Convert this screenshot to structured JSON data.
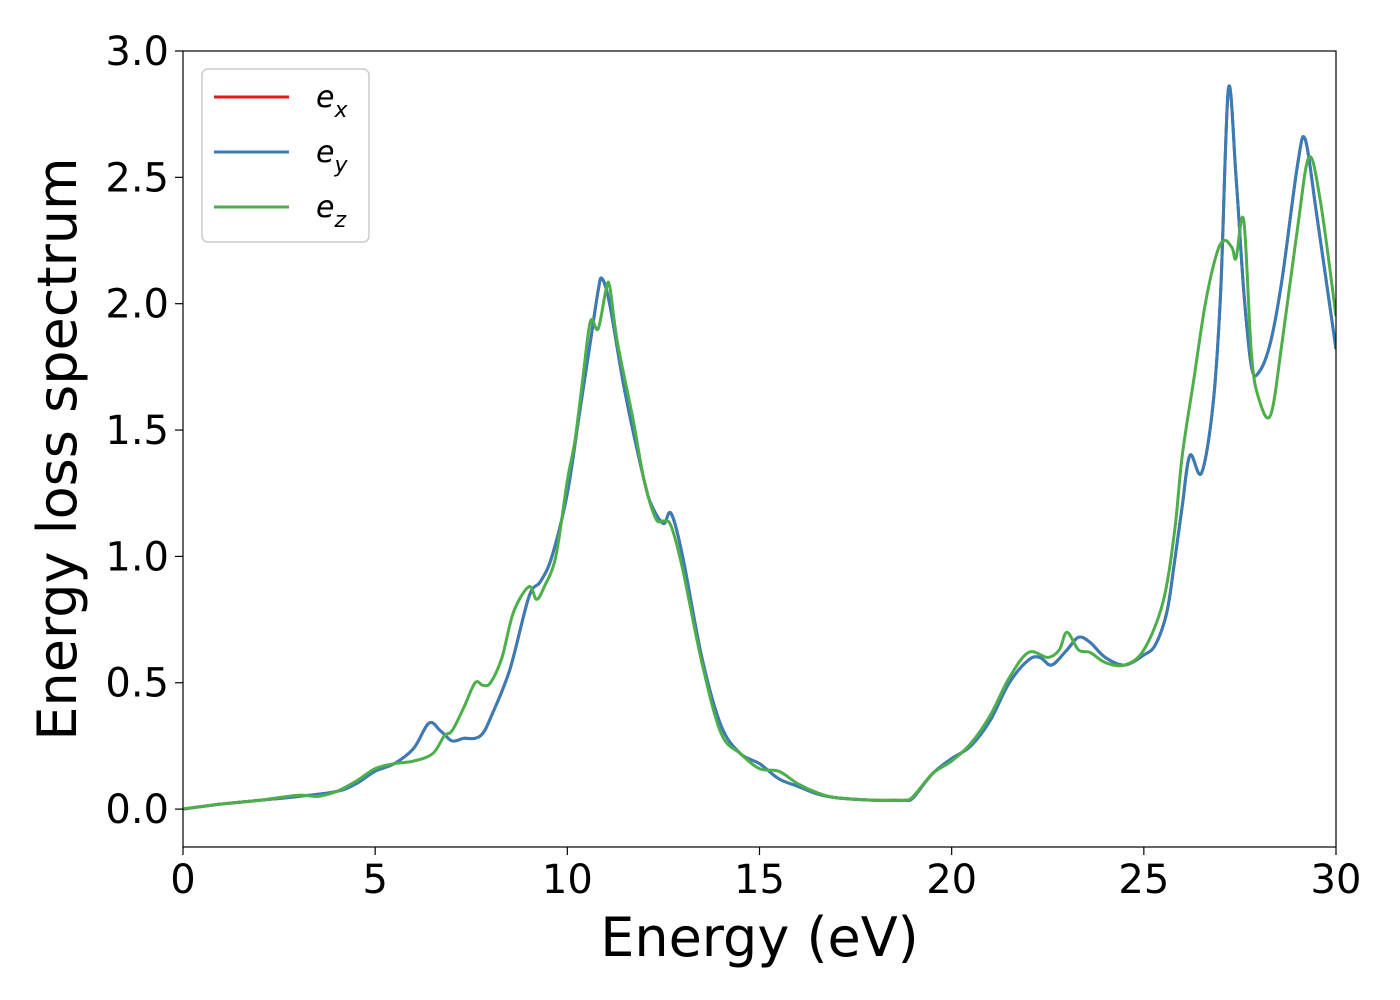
{
  "chart_data": {
    "type": "line",
    "xlabel": "Energy (eV)",
    "ylabel": "Energy loss spectrum",
    "xlim": [
      0,
      30
    ],
    "ylim": [
      -0.15,
      3.0
    ],
    "x_ticks": [
      0,
      5,
      10,
      15,
      20,
      25,
      30
    ],
    "x_tick_labels": [
      "0",
      "5",
      "10",
      "15",
      "20",
      "25",
      "30"
    ],
    "y_ticks": [
      0.0,
      0.5,
      1.0,
      1.5,
      2.0,
      2.5,
      3.0
    ],
    "y_tick_labels": [
      "0.0",
      "0.5",
      "1.0",
      "1.5",
      "2.0",
      "2.5",
      "3.0"
    ],
    "grid": false,
    "legend_position": "top-left",
    "series": [
      {
        "name": "e_x",
        "legend_base": "e",
        "legend_sub": "x",
        "color": "#e41a1c",
        "x": [
          0,
          1,
          2,
          3,
          4,
          4.5,
          5,
          5.5,
          6,
          6.4,
          6.7,
          7,
          7.3,
          7.6,
          7.8,
          8,
          8.5,
          9,
          9.3,
          9.6,
          10,
          10.3,
          10.6,
          10.8,
          10.9,
          11.1,
          11.5,
          12,
          12.2,
          12.5,
          12.7,
          13,
          13.5,
          14,
          14.5,
          15,
          15.5,
          16,
          16.5,
          17,
          18,
          18.5,
          18.8,
          19,
          19.5,
          20,
          20.5,
          21,
          21.5,
          22,
          22.3,
          22.6,
          23,
          23.3,
          23.6,
          24,
          24.5,
          25,
          25.3,
          25.6,
          25.8,
          26,
          26.2,
          26.5,
          26.8,
          27,
          27.2,
          27.4,
          27.6,
          27.8,
          28,
          28.3,
          28.6,
          29,
          29.2,
          29.5,
          30
        ],
        "y": [
          0,
          0.02,
          0.035,
          0.05,
          0.07,
          0.1,
          0.15,
          0.18,
          0.24,
          0.34,
          0.31,
          0.27,
          0.28,
          0.28,
          0.3,
          0.36,
          0.55,
          0.84,
          0.9,
          1.0,
          1.25,
          1.55,
          1.85,
          2.05,
          2.1,
          2.0,
          1.65,
          1.3,
          1.2,
          1.13,
          1.17,
          1.0,
          0.6,
          0.33,
          0.22,
          0.18,
          0.12,
          0.09,
          0.06,
          0.045,
          0.035,
          0.035,
          0.035,
          0.045,
          0.14,
          0.2,
          0.25,
          0.35,
          0.5,
          0.59,
          0.6,
          0.57,
          0.63,
          0.68,
          0.66,
          0.6,
          0.57,
          0.61,
          0.65,
          0.78,
          0.98,
          1.2,
          1.4,
          1.33,
          1.6,
          2.05,
          2.85,
          2.5,
          2.05,
          1.75,
          1.73,
          1.85,
          2.1,
          2.55,
          2.65,
          2.35,
          1.82
        ]
      },
      {
        "name": "e_y",
        "legend_base": "e",
        "legend_sub": "y",
        "color": "#377eb8",
        "x": [
          0,
          1,
          2,
          3,
          4,
          4.5,
          5,
          5.5,
          6,
          6.4,
          6.7,
          7,
          7.3,
          7.6,
          7.8,
          8,
          8.5,
          9,
          9.3,
          9.6,
          10,
          10.3,
          10.6,
          10.8,
          10.9,
          11.1,
          11.5,
          12,
          12.2,
          12.5,
          12.7,
          13,
          13.5,
          14,
          14.5,
          15,
          15.5,
          16,
          16.5,
          17,
          18,
          18.5,
          18.8,
          19,
          19.5,
          20,
          20.5,
          21,
          21.5,
          22,
          22.3,
          22.6,
          23,
          23.3,
          23.6,
          24,
          24.5,
          25,
          25.3,
          25.6,
          25.8,
          26,
          26.2,
          26.5,
          26.8,
          27,
          27.2,
          27.4,
          27.6,
          27.8,
          28,
          28.3,
          28.6,
          29,
          29.2,
          29.5,
          30
        ],
        "y": [
          0,
          0.02,
          0.035,
          0.05,
          0.07,
          0.1,
          0.15,
          0.18,
          0.24,
          0.34,
          0.31,
          0.27,
          0.28,
          0.28,
          0.3,
          0.36,
          0.55,
          0.84,
          0.9,
          1.0,
          1.25,
          1.55,
          1.85,
          2.05,
          2.1,
          2.0,
          1.65,
          1.3,
          1.2,
          1.13,
          1.17,
          1.0,
          0.6,
          0.33,
          0.22,
          0.18,
          0.12,
          0.09,
          0.06,
          0.045,
          0.035,
          0.035,
          0.035,
          0.045,
          0.14,
          0.2,
          0.25,
          0.35,
          0.5,
          0.59,
          0.6,
          0.57,
          0.63,
          0.68,
          0.66,
          0.6,
          0.57,
          0.61,
          0.65,
          0.78,
          0.98,
          1.2,
          1.4,
          1.33,
          1.6,
          2.05,
          2.85,
          2.5,
          2.05,
          1.75,
          1.73,
          1.85,
          2.1,
          2.55,
          2.65,
          2.35,
          1.82
        ]
      },
      {
        "name": "e_z",
        "legend_base": "e",
        "legend_sub": "z",
        "color": "#4daf4a",
        "x": [
          0,
          1,
          2,
          3,
          3.5,
          4,
          4.5,
          5,
          5.5,
          6,
          6.5,
          6.8,
          7,
          7.3,
          7.6,
          7.8,
          8,
          8.3,
          8.6,
          9,
          9.2,
          9.4,
          9.7,
          10,
          10.2,
          10.4,
          10.6,
          10.8,
          11,
          11.1,
          11.3,
          11.7,
          12,
          12.3,
          12.5,
          12.7,
          13,
          13.5,
          14,
          14.5,
          15,
          15.5,
          16,
          16.5,
          17,
          18,
          18.5,
          18.8,
          19,
          19.5,
          20,
          20.5,
          21,
          21.5,
          22,
          22.5,
          22.8,
          23,
          23.3,
          23.6,
          24,
          24.5,
          25,
          25.5,
          25.8,
          26,
          26.3,
          26.6,
          26.9,
          27.1,
          27.3,
          27.4,
          27.6,
          27.8,
          28,
          28.3,
          28.6,
          29,
          29.3,
          29.6,
          30
        ],
        "y": [
          0,
          0.02,
          0.035,
          0.055,
          0.05,
          0.07,
          0.11,
          0.16,
          0.18,
          0.19,
          0.22,
          0.29,
          0.31,
          0.4,
          0.5,
          0.49,
          0.5,
          0.6,
          0.78,
          0.88,
          0.83,
          0.88,
          1.0,
          1.3,
          1.46,
          1.7,
          1.93,
          1.9,
          2.05,
          2.07,
          1.85,
          1.55,
          1.3,
          1.15,
          1.14,
          1.12,
          0.95,
          0.58,
          0.3,
          0.22,
          0.16,
          0.15,
          0.1,
          0.065,
          0.045,
          0.035,
          0.035,
          0.035,
          0.05,
          0.14,
          0.19,
          0.26,
          0.37,
          0.52,
          0.62,
          0.6,
          0.63,
          0.7,
          0.63,
          0.62,
          0.58,
          0.57,
          0.63,
          0.82,
          1.1,
          1.4,
          1.7,
          2.0,
          2.2,
          2.25,
          2.22,
          2.18,
          2.33,
          1.8,
          1.62,
          1.56,
          1.85,
          2.3,
          2.58,
          2.4,
          1.95
        ]
      }
    ]
  }
}
